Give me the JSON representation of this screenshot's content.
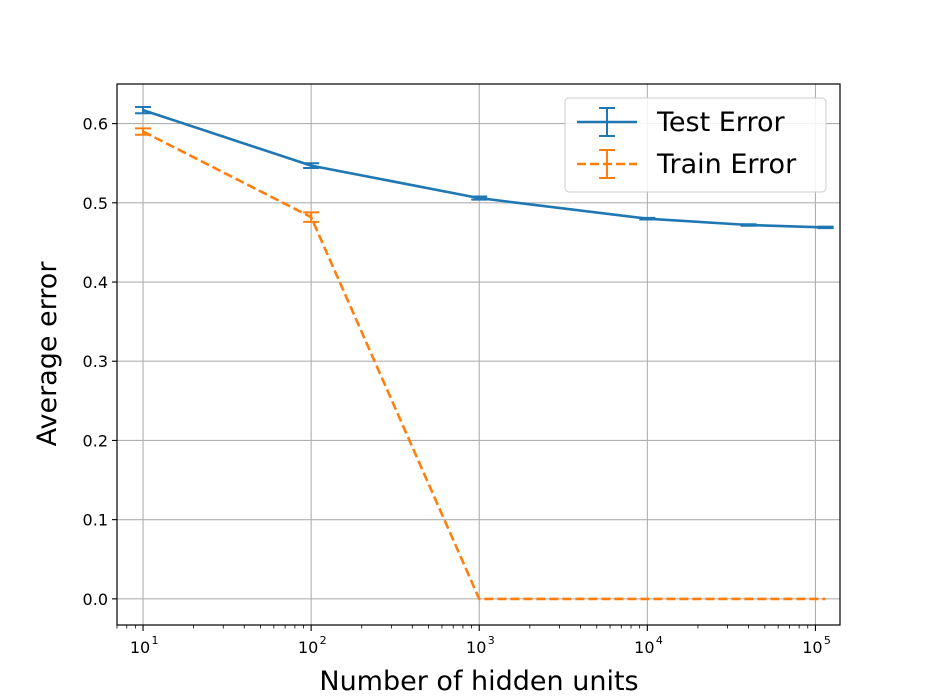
{
  "chart_data": {
    "type": "line",
    "x_scale": "log",
    "xlabel": "Number of hidden units",
    "ylabel": "Average error",
    "xlim": [
      7,
      140000
    ],
    "ylim": [
      -0.033,
      0.65
    ],
    "grid": true,
    "legend_position": "top-right",
    "x_ticks": [
      {
        "value": 10,
        "base": "10",
        "exp": "1"
      },
      {
        "value": 100,
        "base": "10",
        "exp": "2"
      },
      {
        "value": 1000,
        "base": "10",
        "exp": "3"
      },
      {
        "value": 10000,
        "base": "10",
        "exp": "4"
      },
      {
        "value": 100000,
        "base": "10",
        "exp": "5"
      }
    ],
    "y_ticks": [
      {
        "value": 0.0,
        "label": "0.0"
      },
      {
        "value": 0.1,
        "label": "0.1"
      },
      {
        "value": 0.2,
        "label": "0.2"
      },
      {
        "value": 0.3,
        "label": "0.3"
      },
      {
        "value": 0.4,
        "label": "0.4"
      },
      {
        "value": 0.5,
        "label": "0.5"
      },
      {
        "value": 0.6,
        "label": "0.6"
      }
    ],
    "series": [
      {
        "name": "Test Error",
        "color": "#1f77b4",
        "style": "solid",
        "x": [
          10,
          100,
          1000,
          10000,
          40000,
          115000
        ],
        "y": [
          0.617,
          0.547,
          0.506,
          0.48,
          0.472,
          0.469
        ],
        "err": [
          0.004,
          0.003,
          0.002,
          0.001,
          0.001,
          0.001
        ]
      },
      {
        "name": "Train Error",
        "color": "#ff7f0e",
        "style": "dashed",
        "x": [
          10,
          100,
          1000,
          10000,
          40000,
          115000
        ],
        "y": [
          0.59,
          0.482,
          0.0,
          0.0,
          0.0,
          0.0
        ],
        "err": [
          0.004,
          0.006,
          0.0,
          0.0,
          0.0,
          0.0
        ]
      }
    ]
  }
}
